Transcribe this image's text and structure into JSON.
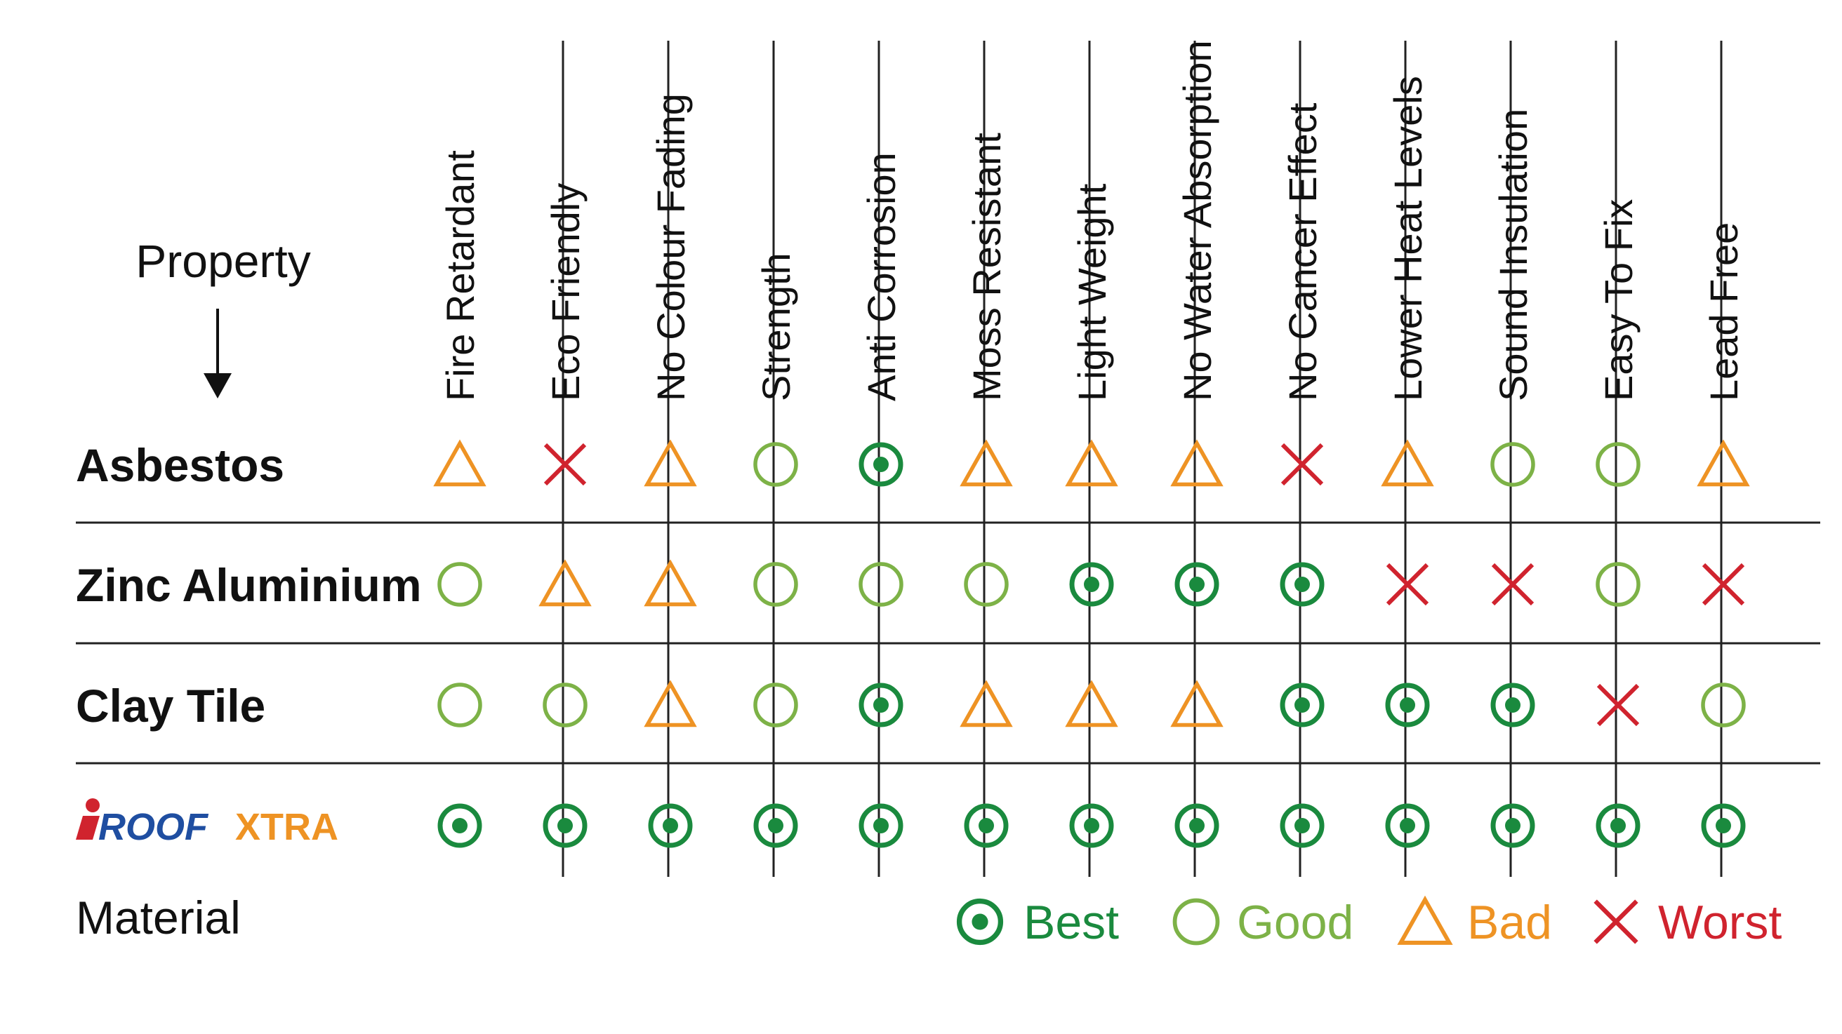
{
  "table": {
    "corner_top_label": "Property",
    "corner_bottom_label": "Material",
    "columns": [
      "Fire Retardant",
      "Eco Friendly",
      "No Colour Fading",
      "Strength",
      "Anti Corrosion",
      "Moss Resistant",
      "Light Weight",
      "No Water Absorption",
      "No Cancer Effect",
      "Lower Heat Levels",
      "Sound Insulation",
      "Easy To Fix",
      "Lead Free"
    ],
    "rows": [
      {
        "name": "Asbestos",
        "ratings": [
          "bad",
          "worst",
          "bad",
          "good",
          "best",
          "bad",
          "bad",
          "bad",
          "worst",
          "bad",
          "good",
          "good",
          "bad"
        ]
      },
      {
        "name": "Zinc Aluminium",
        "ratings": [
          "good",
          "bad",
          "bad",
          "good",
          "good",
          "good",
          "best",
          "best",
          "best",
          "worst",
          "worst",
          "good",
          "worst"
        ]
      },
      {
        "name": "Clay Tile",
        "ratings": [
          "good",
          "good",
          "bad",
          "good",
          "best",
          "bad",
          "bad",
          "bad",
          "best",
          "best",
          "best",
          "worst",
          "good"
        ]
      },
      {
        "name": "iROOF XTRA",
        "logo": {
          "part1": "iROOF",
          "part2": "XTRA"
        },
        "ratings": [
          "best",
          "best",
          "best",
          "best",
          "best",
          "best",
          "best",
          "best",
          "best",
          "best",
          "best",
          "best",
          "best"
        ]
      }
    ]
  },
  "legend": [
    {
      "key": "best",
      "label": "Best",
      "color": "#1a8a3e"
    },
    {
      "key": "good",
      "label": "Good",
      "color": "#7db247"
    },
    {
      "key": "bad",
      "label": "Bad",
      "color": "#ee9324"
    },
    {
      "key": "worst",
      "label": "Worst",
      "color": "#d0232e"
    }
  ],
  "brand_colors": {
    "iroof": "#d0232e",
    "iroof_text": "#1f4ea1",
    "xtra": "#ee9324"
  }
}
